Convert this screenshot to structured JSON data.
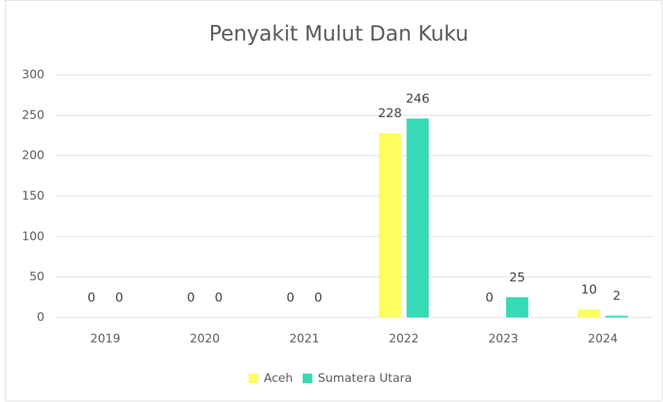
{
  "chart_data": {
    "type": "bar",
    "title": "Penyakit Mulut Dan Kuku",
    "categories": [
      "2019",
      "2020",
      "2021",
      "2022",
      "2023",
      "2024"
    ],
    "series": [
      {
        "name": "Aceh",
        "color": "#fdfd5e",
        "values": [
          0,
          0,
          0,
          228,
          0,
          10
        ]
      },
      {
        "name": "Sumatera Utara",
        "color": "#36dab6",
        "values": [
          0,
          0,
          0,
          246,
          25,
          2
        ]
      }
    ],
    "ylim": [
      0,
      300
    ],
    "yticks": [
      0,
      50,
      100,
      150,
      200,
      250,
      300
    ],
    "grid": true,
    "legend": "bottom"
  }
}
